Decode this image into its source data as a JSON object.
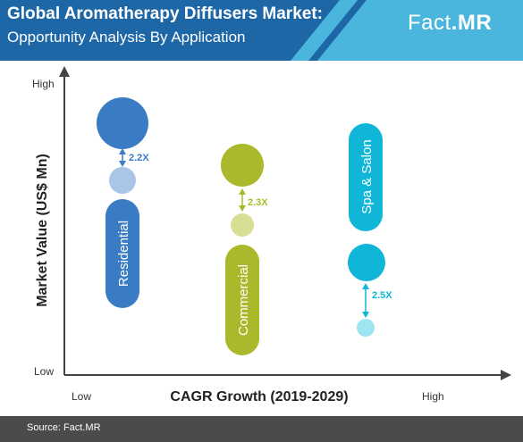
{
  "header": {
    "title": "Global Aromatherapy Diffusers Market:",
    "subtitle": "Opportunity Analysis By Application",
    "logo_main": "Fact",
    "logo_accent": ".MR"
  },
  "footer": {
    "source": "Source: Fact.MR"
  },
  "colors": {
    "header_dark": "#1e67a6",
    "header_light": "#4ab6de",
    "residential": "#3a7cc3",
    "residential_light": "#a9c6e6",
    "commercial": "#a9b92b",
    "commercial_light": "#d6df94",
    "spa": "#0fb6d8",
    "spa_light": "#9fe4f1",
    "footer": "#4b4b4b"
  },
  "chart_data": {
    "type": "scatter",
    "title": "Global Aromatherapy Diffusers Market:",
    "subtitle": "Opportunity Analysis By Application",
    "xlabel": "CAGR Growth (2019-2029)",
    "ylabel": "Market Value (US$ Mn)",
    "x_ticks": [
      "Low",
      "High"
    ],
    "y_ticks": [
      "High",
      "Low"
    ],
    "series": [
      {
        "name": "Residential",
        "growth_label": "2.2X",
        "color": "#3a7cc3",
        "light_color": "#a9c6e6"
      },
      {
        "name": "Commercial",
        "growth_label": "2.3X",
        "color": "#a9b92b",
        "light_color": "#d6df94"
      },
      {
        "name": "Spa & Salon",
        "growth_label": "2.5X",
        "color": "#0fb6d8",
        "light_color": "#9fe4f1"
      }
    ]
  }
}
